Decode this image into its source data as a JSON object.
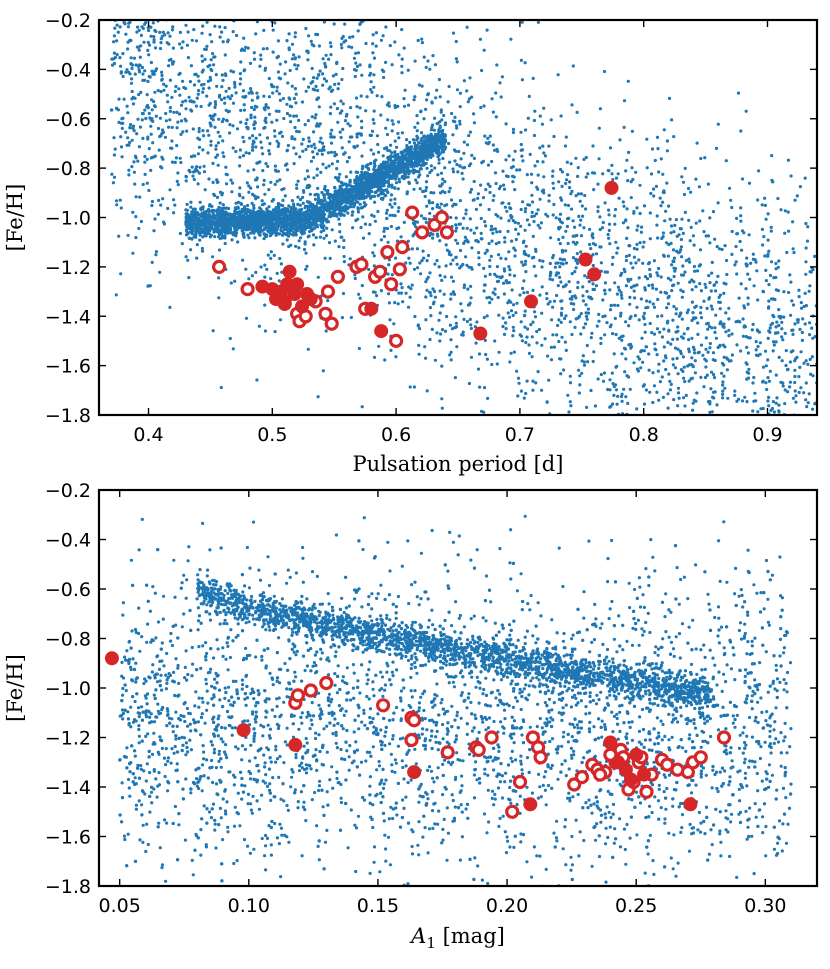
{
  "chart_data": [
    {
      "type": "scatter",
      "xlabel": "Pulsation period [d]",
      "ylabel": "[Fe/H]",
      "xlim": [
        0.36,
        0.94
      ],
      "ylim": [
        -1.8,
        -0.2
      ],
      "xticks": [
        "0.4",
        "0.5",
        "0.6",
        "0.7",
        "0.8",
        "0.9"
      ],
      "yticks": [
        "−0.2",
        "−0.4",
        "−0.6",
        "−0.8",
        "−1.0",
        "−1.2",
        "−1.4",
        "−1.6",
        "−1.8"
      ],
      "grid": false,
      "colors": {
        "background_points": "#1f77b4",
        "highlight": "#d62728"
      },
      "background_density": {
        "description_free": true,
        "band": {
          "x_start": 0.43,
          "x_end": 0.64,
          "y_start": -1.02,
          "y_end": -0.68
        },
        "diffuse_x_range": [
          0.37,
          0.94
        ],
        "approx_count": 6500
      },
      "series": [
        {
          "marker": "open-circle",
          "x": [
            0.457,
            0.48,
            0.51,
            0.52,
            0.522,
            0.527,
            0.535,
            0.543,
            0.545,
            0.548,
            0.553,
            0.568,
            0.575,
            0.583,
            0.587,
            0.593,
            0.596,
            0.6,
            0.603,
            0.605,
            0.613,
            0.621,
            0.631,
            0.637,
            0.641,
            0.572
          ],
          "y": [
            -1.2,
            -1.29,
            -1.35,
            -1.39,
            -1.42,
            -1.4,
            -1.34,
            -1.39,
            -1.3,
            -1.43,
            -1.24,
            -1.2,
            -1.37,
            -1.24,
            -1.22,
            -1.14,
            -1.27,
            -1.5,
            -1.21,
            -1.12,
            -0.98,
            -1.06,
            -1.03,
            -1.0,
            -1.06,
            -1.19
          ]
        },
        {
          "marker": "filled-circle",
          "x": [
            0.492,
            0.5,
            0.503,
            0.507,
            0.51,
            0.512,
            0.514,
            0.516,
            0.518,
            0.52,
            0.524,
            0.528,
            0.531,
            0.58,
            0.588,
            0.668,
            0.709,
            0.753,
            0.76,
            0.774
          ],
          "y": [
            -1.28,
            -1.29,
            -1.33,
            -1.3,
            -1.34,
            -1.27,
            -1.22,
            -1.28,
            -1.31,
            -1.27,
            -1.36,
            -1.31,
            -1.33,
            -1.37,
            -1.46,
            -1.47,
            -1.34,
            -1.17,
            -1.23,
            -0.88
          ]
        }
      ]
    },
    {
      "type": "scatter",
      "xlabel_prefix": "A",
      "xlabel_sub": "1",
      "xlabel_suffix": " [mag]",
      "ylabel": "[Fe/H]",
      "xlim": [
        0.042,
        0.32
      ],
      "ylim": [
        -1.8,
        -0.2
      ],
      "xticks": [
        "0.05",
        "0.10",
        "0.15",
        "0.20",
        "0.25",
        "0.30"
      ],
      "yticks": [
        "−0.2",
        "−0.4",
        "−0.6",
        "−0.8",
        "−1.0",
        "−1.2",
        "−1.4",
        "−1.6",
        "−1.8"
      ],
      "grid": false,
      "colors": {
        "background_points": "#1f77b4",
        "highlight": "#d62728"
      },
      "background_density": {
        "band": {
          "x_start": 0.08,
          "x_end": 0.28,
          "y_start": -0.6,
          "y_end": -1.03
        },
        "diffuse_x_range": [
          0.05,
          0.31
        ],
        "approx_count": 6500
      },
      "series": [
        {
          "marker": "open-circle",
          "x": [
            0.118,
            0.119,
            0.124,
            0.13,
            0.152,
            0.163,
            0.164,
            0.163,
            0.177,
            0.188,
            0.189,
            0.194,
            0.205,
            0.21,
            0.212,
            0.213,
            0.202,
            0.226,
            0.229,
            0.233,
            0.235,
            0.238,
            0.242,
            0.244,
            0.245,
            0.247,
            0.249,
            0.251,
            0.254,
            0.256,
            0.26,
            0.262,
            0.266,
            0.27,
            0.272,
            0.275,
            0.284,
            0.24,
            0.236,
            0.252
          ],
          "y": [
            -1.06,
            -1.03,
            -1.01,
            -0.98,
            -1.07,
            -1.12,
            -1.13,
            -1.21,
            -1.26,
            -1.24,
            -1.25,
            -1.2,
            -1.38,
            -1.2,
            -1.24,
            -1.28,
            -1.5,
            -1.39,
            -1.36,
            -1.31,
            -1.33,
            -1.34,
            -1.3,
            -1.25,
            -1.28,
            -1.41,
            -1.38,
            -1.3,
            -1.42,
            -1.35,
            -1.29,
            -1.31,
            -1.33,
            -1.34,
            -1.3,
            -1.28,
            -1.2,
            -1.27,
            -1.35,
            -1.28
          ]
        },
        {
          "marker": "filled-circle",
          "x": [
            0.047,
            0.098,
            0.118,
            0.164,
            0.209,
            0.24,
            0.243,
            0.246,
            0.248,
            0.25,
            0.253,
            0.271
          ],
          "y": [
            -0.88,
            -1.17,
            -1.23,
            -1.34,
            -1.47,
            -1.22,
            -1.3,
            -1.33,
            -1.37,
            -1.27,
            -1.35,
            -1.47
          ]
        }
      ]
    }
  ]
}
